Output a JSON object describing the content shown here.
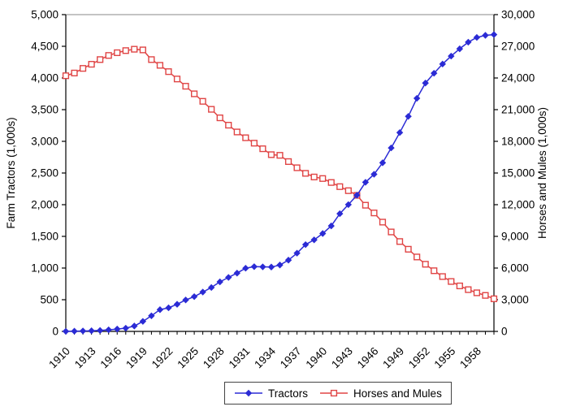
{
  "chart_data": {
    "type": "line",
    "x": [
      1910,
      1911,
      1912,
      1913,
      1914,
      1915,
      1916,
      1917,
      1918,
      1919,
      1920,
      1921,
      1922,
      1923,
      1924,
      1925,
      1926,
      1927,
      1928,
      1929,
      1930,
      1931,
      1932,
      1933,
      1934,
      1935,
      1936,
      1937,
      1938,
      1939,
      1940,
      1941,
      1942,
      1943,
      1944,
      1945,
      1946,
      1947,
      1948,
      1949,
      1950,
      1951,
      1952,
      1953,
      1954,
      1955,
      1956,
      1957,
      1958,
      1959,
      1960
    ],
    "x_tick_years": [
      1910,
      1913,
      1916,
      1919,
      1922,
      1925,
      1928,
      1931,
      1934,
      1937,
      1940,
      1943,
      1946,
      1949,
      1952,
      1955,
      1958
    ],
    "series": [
      {
        "name": "Tractors",
        "axis": "left",
        "color": "#2b2bd5",
        "marker": "diamond",
        "values": [
          1,
          4,
          7,
          10,
          15,
          25,
          37,
          51,
          85,
          158,
          246,
          343,
          372,
          428,
          496,
          549,
          621,
          693,
          782,
          852,
          920,
          997,
          1022,
          1019,
          1016,
          1048,
          1125,
          1235,
          1370,
          1445,
          1545,
          1665,
          1858,
          2001,
          2150,
          2354,
          2480,
          2662,
          2896,
          3138,
          3394,
          3679,
          3920,
          4075,
          4220,
          4345,
          4460,
          4565,
          4640,
          4673,
          4685
        ]
      },
      {
        "name": "Horses and Mules",
        "axis": "right",
        "color": "#e04545",
        "marker": "open-square",
        "values": [
          24211,
          24469,
          24907,
          25299,
          25742,
          26134,
          26392,
          26593,
          26723,
          26657,
          25742,
          25199,
          24601,
          23905,
          23218,
          22499,
          21788,
          21032,
          20225,
          19531,
          18886,
          18339,
          17826,
          17297,
          16737,
          16676,
          16083,
          15497,
          14969,
          14622,
          14478,
          14103,
          13709,
          13327,
          12885,
          11950,
          11219,
          10350,
          9418,
          8512,
          7781,
          7048,
          6360,
          5746,
          5194,
          4727,
          4309,
          3955,
          3655,
          3409,
          3089
        ]
      }
    ],
    "left_axis": {
      "label": "Farm Tractors (1,000s)",
      "min": 0,
      "max": 5000,
      "step": 500
    },
    "right_axis": {
      "label": "Horses and Mules (1,000s)",
      "min": 0,
      "max": 30000,
      "step": 3000
    },
    "legend": {
      "position": "bottom",
      "entries": [
        "Tractors",
        "Horses and Mules"
      ]
    },
    "grid": false,
    "title": ""
  },
  "colors": {
    "tractors": "#2b2bd5",
    "horses_and_mules": "#e04545",
    "axis": "#000000",
    "plot_top_border": "#8a8a8a"
  }
}
